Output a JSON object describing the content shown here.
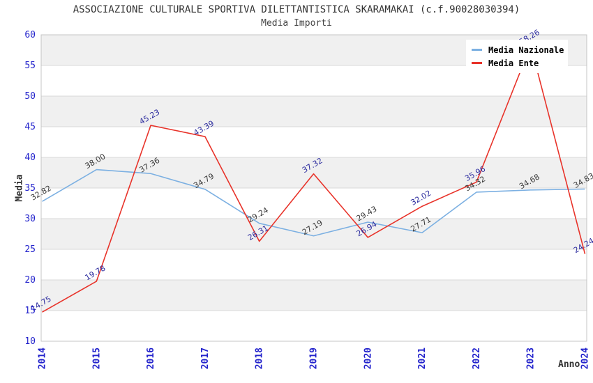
{
  "header": {
    "title": "ASSOCIAZIONE CULTURALE SPORTIVA DILETTANTISTICA SKARAMAKAI (c.f.90028030394)",
    "subtitle": "Media Importi"
  },
  "legend": {
    "items": [
      {
        "label": "Media Nazionale",
        "color": "#7cb0e2"
      },
      {
        "label": "Media Ente",
        "color": "#e8332a"
      }
    ]
  },
  "axes": {
    "y_title": "Media",
    "x_title": "Anno",
    "y_ticks": [
      10,
      15,
      20,
      25,
      30,
      35,
      40,
      45,
      50,
      55,
      60
    ],
    "x_ticks": [
      "2014",
      "2015",
      "2016",
      "2017",
      "2018",
      "2019",
      "2020",
      "2021",
      "2022",
      "2023",
      "2024"
    ]
  },
  "colors": {
    "tick_label": "#2323cc",
    "band_gray": "#f0f0f0",
    "gridline": "#d8d8d8",
    "plot_border": "#c4c4c4",
    "title_text": "#333333"
  },
  "chart_data": {
    "type": "line",
    "title": "ASSOCIAZIONE CULTURALE SPORTIVA DILETTANTISTICA SKARAMAKAI (c.f.90028030394)",
    "subtitle": "Media Importi",
    "xlabel": "Anno",
    "ylabel": "Media",
    "ylim": [
      10,
      60
    ],
    "y_step": 5,
    "grid": "horizontal-bands-alternating",
    "legend_position": "top-right",
    "categories": [
      "2014",
      "2015",
      "2016",
      "2017",
      "2018",
      "2019",
      "2020",
      "2021",
      "2022",
      "2023",
      "2024"
    ],
    "series": [
      {
        "name": "Media Nazionale",
        "color": "#7cb0e2",
        "label_color": "#3a3a3a",
        "values": [
          32.82,
          38.0,
          37.36,
          34.79,
          29.24,
          27.19,
          29.43,
          27.71,
          34.32,
          34.68,
          34.83
        ]
      },
      {
        "name": "Media Ente",
        "color": "#e8332a",
        "label_color": "#2b2b9e",
        "values": [
          14.75,
          19.78,
          45.23,
          43.39,
          26.31,
          37.32,
          26.94,
          32.02,
          35.96,
          58.26,
          24.24
        ]
      }
    ]
  }
}
